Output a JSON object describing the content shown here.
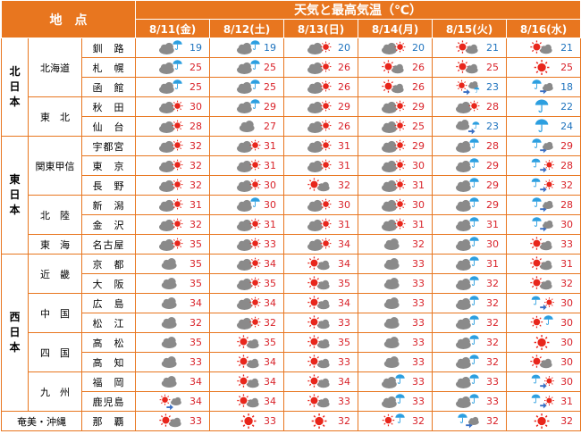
{
  "header": {
    "area_label": "地　点",
    "title": "天気と最高気温（℃）",
    "dates": [
      "8/11(金)",
      "8/12(土)",
      "8/13(日)",
      "8/14(月)",
      "8/15(火)",
      "8/16(水)"
    ]
  },
  "colors": {
    "accent": "#e8761f",
    "temp": "#d9232a",
    "cold_temp": "#1e73be",
    "sun": "#e8261c",
    "cloud": "#8a8a8a",
    "rain": "#2c9fe0"
  },
  "regions": [
    {
      "name": "北\n日\n本",
      "groups": [
        {
          "name": "北海道",
          "cities": [
            {
              "name": "釧　路",
              "days": [
                {
                  "icon": "cloud-rain",
                  "t": "19"
                },
                {
                  "icon": "cloud-rain",
                  "t": "19"
                },
                {
                  "icon": "cloud-sun",
                  "t": "20"
                },
                {
                  "icon": "cloud-sun",
                  "t": "20"
                },
                {
                  "icon": "sun-cloud",
                  "t": "21"
                },
                {
                  "icon": "sun-cloud",
                  "t": "21"
                }
              ]
            },
            {
              "name": "札　幌",
              "days": [
                {
                  "icon": "cloud-rain",
                  "t": "25"
                },
                {
                  "icon": "cloud-rain",
                  "t": "25"
                },
                {
                  "icon": "cloud-sun",
                  "t": "26"
                },
                {
                  "icon": "sun-cloud",
                  "t": "26"
                },
                {
                  "icon": "sun-cloud",
                  "t": "25"
                },
                {
                  "icon": "sun",
                  "t": "25"
                }
              ]
            },
            {
              "name": "函　館",
              "days": [
                {
                  "icon": "cloud-rain",
                  "t": "25"
                },
                {
                  "icon": "cloud-rain",
                  "t": "25"
                },
                {
                  "icon": "cloud-sun",
                  "t": "26"
                },
                {
                  "icon": "sun-cloud",
                  "t": "26"
                },
                {
                  "icon": "sun-then-cloud-rain",
                  "t": "23"
                },
                {
                  "icon": "rain-then-cloud",
                  "t": "18"
                }
              ]
            }
          ]
        },
        {
          "name": "東　北",
          "cities": [
            {
              "name": "秋　田",
              "days": [
                {
                  "icon": "cloud-sun",
                  "t": "30"
                },
                {
                  "icon": "cloud-rain",
                  "t": "29"
                },
                {
                  "icon": "cloud-sun",
                  "t": "29"
                },
                {
                  "icon": "cloud-sun",
                  "t": "29"
                },
                {
                  "icon": "cloud-sun",
                  "t": "28"
                },
                {
                  "icon": "rain",
                  "t": "22"
                }
              ]
            },
            {
              "name": "仙　台",
              "days": [
                {
                  "icon": "cloud-sun",
                  "t": "28"
                },
                {
                  "icon": "cloud",
                  "t": "27"
                },
                {
                  "icon": "cloud-sun",
                  "t": "26"
                },
                {
                  "icon": "cloud-sun",
                  "t": "25"
                },
                {
                  "icon": "cloud-then-rain",
                  "t": "23"
                },
                {
                  "icon": "rain",
                  "t": "24"
                }
              ]
            }
          ]
        }
      ]
    },
    {
      "name": "東\n日\n本",
      "groups": [
        {
          "name": "関東甲信",
          "cities": [
            {
              "name": "宇都宮",
              "days": [
                {
                  "icon": "cloud-sun",
                  "t": "32"
                },
                {
                  "icon": "cloud-sun",
                  "t": "31"
                },
                {
                  "icon": "cloud-sun",
                  "t": "31"
                },
                {
                  "icon": "cloud-sun",
                  "t": "29"
                },
                {
                  "icon": "cloud-rain",
                  "t": "28"
                },
                {
                  "icon": "rain-then-cloud",
                  "t": "29"
                }
              ]
            },
            {
              "name": "東　京",
              "days": [
                {
                  "icon": "cloud-sun",
                  "t": "32"
                },
                {
                  "icon": "cloud-sun",
                  "t": "31"
                },
                {
                  "icon": "cloud-sun",
                  "t": "31"
                },
                {
                  "icon": "cloud-sun",
                  "t": "30"
                },
                {
                  "icon": "cloud-rain",
                  "t": "29"
                },
                {
                  "icon": "rain-then-sun",
                  "t": "28"
                }
              ]
            },
            {
              "name": "長　野",
              "days": [
                {
                  "icon": "cloud-sun",
                  "t": "32"
                },
                {
                  "icon": "cloud-sun",
                  "t": "30"
                },
                {
                  "icon": "sun-cloud",
                  "t": "32"
                },
                {
                  "icon": "cloud-sun",
                  "t": "31"
                },
                {
                  "icon": "cloud-rain",
                  "t": "29"
                },
                {
                  "icon": "rain-then-sun",
                  "t": "32"
                }
              ]
            }
          ]
        },
        {
          "name": "北　陸",
          "cities": [
            {
              "name": "新　潟",
              "days": [
                {
                  "icon": "cloud-sun",
                  "t": "31"
                },
                {
                  "icon": "cloud-rain",
                  "t": "30"
                },
                {
                  "icon": "cloud-sun",
                  "t": "30"
                },
                {
                  "icon": "cloud-sun",
                  "t": "30"
                },
                {
                  "icon": "cloud-rain",
                  "t": "29"
                },
                {
                  "icon": "rain-then-cloud",
                  "t": "28"
                }
              ]
            },
            {
              "name": "金　沢",
              "days": [
                {
                  "icon": "cloud-sun",
                  "t": "32"
                },
                {
                  "icon": "cloud-sun",
                  "t": "31"
                },
                {
                  "icon": "cloud-sun",
                  "t": "31"
                },
                {
                  "icon": "cloud-sun",
                  "t": "31"
                },
                {
                  "icon": "cloud-rain",
                  "t": "31"
                },
                {
                  "icon": "rain-then-cloud",
                  "t": "30"
                }
              ]
            }
          ]
        },
        {
          "name": "東　海",
          "cities": [
            {
              "name": "名古屋",
              "days": [
                {
                  "icon": "cloud-sun",
                  "t": "35"
                },
                {
                  "icon": "cloud-sun",
                  "t": "33"
                },
                {
                  "icon": "cloud-sun",
                  "t": "34"
                },
                {
                  "icon": "cloud",
                  "t": "32"
                },
                {
                  "icon": "cloud-rain",
                  "t": "30"
                },
                {
                  "icon": "sun-cloud",
                  "t": "33"
                }
              ]
            }
          ]
        }
      ]
    },
    {
      "name": "西\n日\n本",
      "groups": [
        {
          "name": "近　畿",
          "cities": [
            {
              "name": "京　都",
              "days": [
                {
                  "icon": "cloud",
                  "t": "35"
                },
                {
                  "icon": "cloud-sun",
                  "t": "34"
                },
                {
                  "icon": "sun-cloud",
                  "t": "34"
                },
                {
                  "icon": "cloud",
                  "t": "33"
                },
                {
                  "icon": "cloud-rain",
                  "t": "31"
                },
                {
                  "icon": "sun-cloud",
                  "t": "31"
                }
              ]
            },
            {
              "name": "大　阪",
              "days": [
                {
                  "icon": "cloud",
                  "t": "35"
                },
                {
                  "icon": "cloud-sun",
                  "t": "35"
                },
                {
                  "icon": "sun-cloud",
                  "t": "35"
                },
                {
                  "icon": "cloud",
                  "t": "33"
                },
                {
                  "icon": "cloud-rain",
                  "t": "32"
                },
                {
                  "icon": "sun-cloud",
                  "t": "32"
                }
              ]
            }
          ]
        },
        {
          "name": "中　国",
          "cities": [
            {
              "name": "広　島",
              "days": [
                {
                  "icon": "cloud",
                  "t": "34"
                },
                {
                  "icon": "cloud-sun",
                  "t": "34"
                },
                {
                  "icon": "sun-cloud",
                  "t": "34"
                },
                {
                  "icon": "cloud",
                  "t": "33"
                },
                {
                  "icon": "cloud-rain",
                  "t": "32"
                },
                {
                  "icon": "rain-then-sun",
                  "t": "30"
                }
              ]
            },
            {
              "name": "松　江",
              "days": [
                {
                  "icon": "cloud",
                  "t": "32"
                },
                {
                  "icon": "cloud-sun",
                  "t": "32"
                },
                {
                  "icon": "sun-cloud",
                  "t": "33"
                },
                {
                  "icon": "cloud",
                  "t": "33"
                },
                {
                  "icon": "cloud-rain",
                  "t": "32"
                },
                {
                  "icon": "sun-rain",
                  "t": "30"
                }
              ]
            }
          ]
        },
        {
          "name": "四　国",
          "cities": [
            {
              "name": "高　松",
              "days": [
                {
                  "icon": "cloud",
                  "t": "35"
                },
                {
                  "icon": "sun-cloud",
                  "t": "35"
                },
                {
                  "icon": "sun-cloud",
                  "t": "35"
                },
                {
                  "icon": "cloud",
                  "t": "33"
                },
                {
                  "icon": "cloud-rain",
                  "t": "32"
                },
                {
                  "icon": "sun",
                  "t": "30"
                }
              ]
            },
            {
              "name": "高　知",
              "days": [
                {
                  "icon": "cloud",
                  "t": "33"
                },
                {
                  "icon": "sun-cloud",
                  "t": "34"
                },
                {
                  "icon": "sun-cloud",
                  "t": "33"
                },
                {
                  "icon": "cloud",
                  "t": "33"
                },
                {
                  "icon": "cloud-rain",
                  "t": "32"
                },
                {
                  "icon": "sun-cloud",
                  "t": "30"
                }
              ]
            }
          ]
        },
        {
          "name": "九　州",
          "cities": [
            {
              "name": "福　岡",
              "days": [
                {
                  "icon": "cloud",
                  "t": "34"
                },
                {
                  "icon": "sun-cloud",
                  "t": "34"
                },
                {
                  "icon": "sun-cloud",
                  "t": "34"
                },
                {
                  "icon": "cloud-rain",
                  "t": "33"
                },
                {
                  "icon": "cloud-rain",
                  "t": "33"
                },
                {
                  "icon": "rain-then-sun",
                  "t": "30"
                }
              ]
            },
            {
              "name": "鹿児島",
              "days": [
                {
                  "icon": "sun-then-cloud",
                  "t": "34"
                },
                {
                  "icon": "sun-cloud",
                  "t": "34"
                },
                {
                  "icon": "sun-cloud",
                  "t": "33"
                },
                {
                  "icon": "cloud-rain",
                  "t": "33"
                },
                {
                  "icon": "cloud-rain",
                  "t": "33"
                },
                {
                  "icon": "rain-then-sun",
                  "t": "31"
                }
              ]
            }
          ]
        }
      ]
    },
    {
      "name": "奄美・沖縄",
      "groups": [
        {
          "name": "",
          "cities": [
            {
              "name": "那　覇",
              "days": [
                {
                  "icon": "sun-cloud",
                  "t": "33"
                },
                {
                  "icon": "sun",
                  "t": "33"
                },
                {
                  "icon": "sun",
                  "t": "32"
                },
                {
                  "icon": "sun-rain",
                  "t": "32"
                },
                {
                  "icon": "rain-then-cloud",
                  "t": "32"
                },
                {
                  "icon": "sun",
                  "t": "32"
                }
              ]
            }
          ]
        }
      ]
    }
  ]
}
